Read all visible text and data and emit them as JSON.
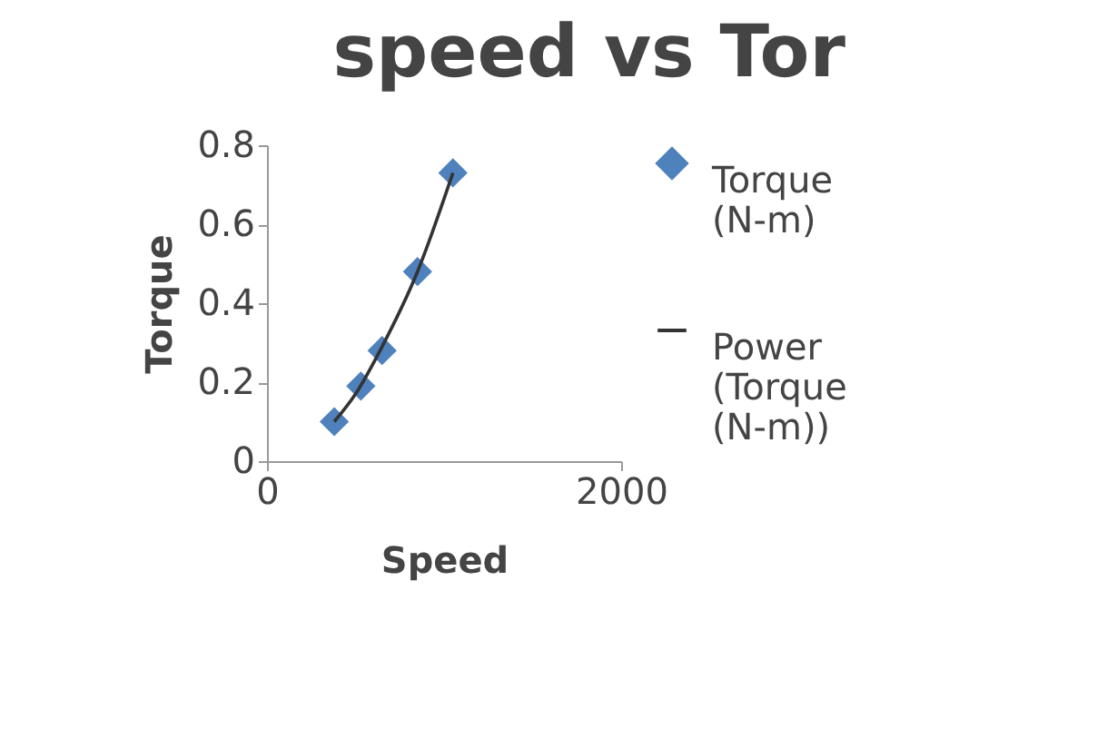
{
  "chart_data": {
    "type": "scatter",
    "title": "speed vs Tor",
    "xlabel": "Speed",
    "ylabel": "Torque",
    "series": [
      {
        "name": "Torque (N-m)",
        "color": "#4f81bd",
        "marker": "diamond",
        "x": [
          380,
          530,
          650,
          850,
          1050
        ],
        "values": [
          0.1,
          0.19,
          0.28,
          0.48,
          0.73
        ]
      },
      {
        "name": "Power (Torque (N-m))",
        "type": "line",
        "color": "#333333",
        "line_style": "solid",
        "x": [
          380,
          500,
          650,
          850,
          1050
        ],
        "values": [
          0.1,
          0.17,
          0.29,
          0.48,
          0.73
        ]
      }
    ],
    "xlim": [
      0,
      2000
    ],
    "xticks": [
      0,
      2000
    ],
    "ylim": [
      0,
      0.8
    ],
    "yticks": [
      0,
      0.2,
      0.4,
      0.6,
      0.8
    ],
    "grid": false,
    "legend": "right"
  }
}
